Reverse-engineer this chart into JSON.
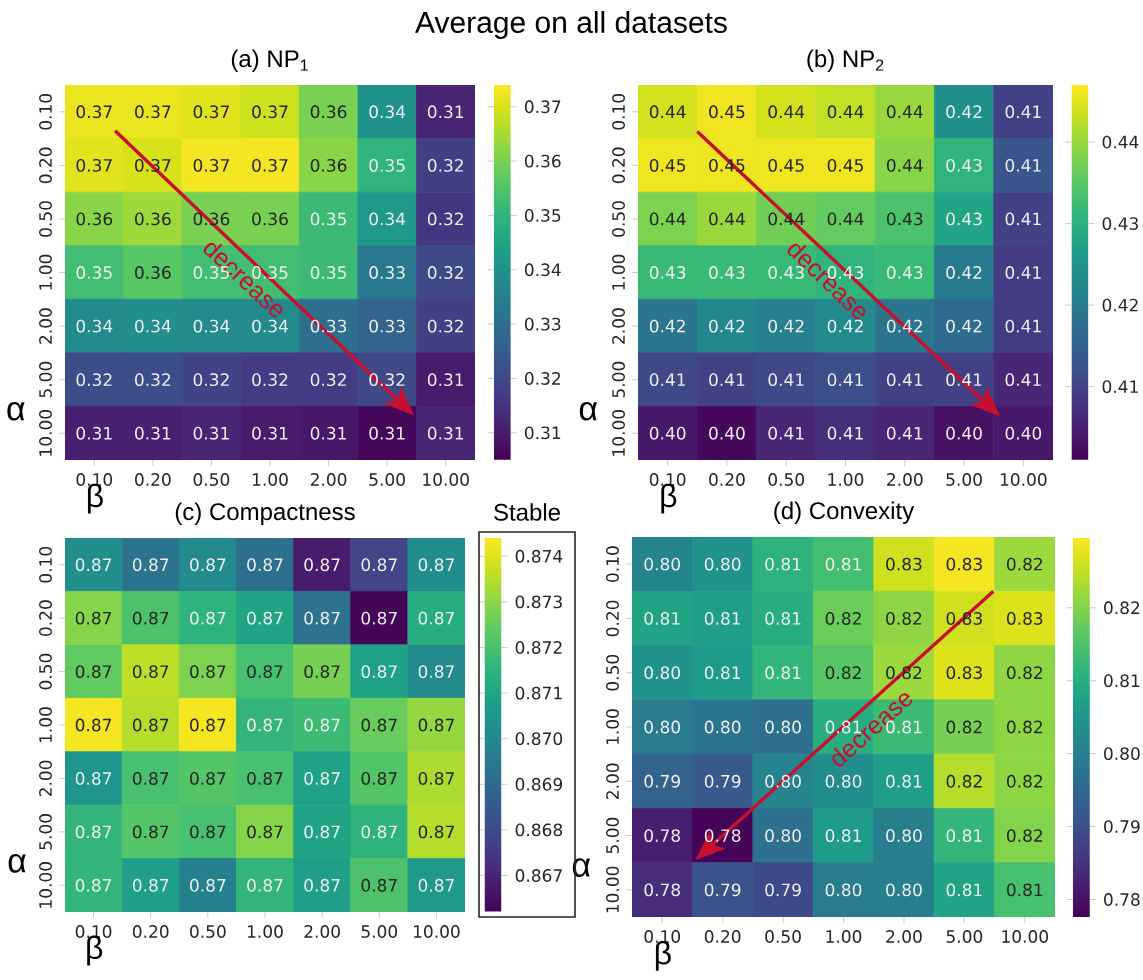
{
  "chart_data": [
    {
      "type": "heatmap",
      "title": "(a) NP$_{1}$",
      "xlabel": "β",
      "ylabel": "α",
      "categories": [
        "0.10",
        "0.20",
        "0.50",
        "1.00",
        "2.00",
        "5.00",
        "10.00"
      ],
      "y_categories": [
        "0.10",
        "0.20",
        "0.50",
        "1.00",
        "2.00",
        "5.00",
        "10.00"
      ],
      "cells": [
        [
          0.372,
          0.372,
          0.371,
          0.369,
          0.36,
          0.34,
          0.312
        ],
        [
          0.371,
          0.37,
          0.373,
          0.373,
          0.362,
          0.35,
          0.318
        ],
        [
          0.362,
          0.364,
          0.36,
          0.36,
          0.352,
          0.342,
          0.316
        ],
        [
          0.353,
          0.356,
          0.353,
          0.353,
          0.352,
          0.333,
          0.32
        ],
        [
          0.338,
          0.339,
          0.338,
          0.338,
          0.33,
          0.327,
          0.318
        ],
        [
          0.321,
          0.321,
          0.319,
          0.317,
          0.317,
          0.32,
          0.31
        ],
        [
          0.311,
          0.311,
          0.312,
          0.31,
          0.309,
          0.306,
          0.312
        ]
      ],
      "cell_labels": [
        [
          "0.37",
          "0.37",
          "0.37",
          "0.37",
          "0.36",
          "0.34",
          "0.31"
        ],
        [
          "0.37",
          "0.37",
          "0.37",
          "0.37",
          "0.36",
          "0.35",
          "0.32"
        ],
        [
          "0.36",
          "0.36",
          "0.36",
          "0.36",
          "0.35",
          "0.34",
          "0.32"
        ],
        [
          "0.35",
          "0.36",
          "0.35",
          "0.35",
          "0.35",
          "0.33",
          "0.32"
        ],
        [
          "0.34",
          "0.34",
          "0.34",
          "0.34",
          "0.33",
          "0.33",
          "0.32"
        ],
        [
          "0.32",
          "0.32",
          "0.32",
          "0.32",
          "0.32",
          "0.32",
          "0.31"
        ],
        [
          "0.31",
          "0.31",
          "0.31",
          "0.31",
          "0.31",
          "0.31",
          "0.31"
        ]
      ],
      "clim": [
        0.305,
        0.374
      ],
      "cticks": [
        0.31,
        0.32,
        0.33,
        0.34,
        0.35,
        0.36,
        0.37
      ],
      "annotations": [
        "Average on all datasets",
        "decrease"
      ]
    },
    {
      "type": "heatmap",
      "title": "(b) NP$_{2}$",
      "xlabel": "β",
      "ylabel": "α",
      "categories": [
        "0.10",
        "0.20",
        "0.50",
        "1.00",
        "2.00",
        "5.00",
        "10.00"
      ],
      "y_categories": [
        "0.10",
        "0.20",
        "0.50",
        "1.00",
        "2.00",
        "5.00",
        "10.00"
      ],
      "cells": [
        [
          0.444,
          0.446,
          0.444,
          0.443,
          0.44,
          0.424,
          0.41
        ],
        [
          0.446,
          0.446,
          0.446,
          0.446,
          0.439,
          0.431,
          0.413
        ],
        [
          0.438,
          0.44,
          0.437,
          0.436,
          0.434,
          0.428,
          0.41
        ],
        [
          0.432,
          0.432,
          0.432,
          0.431,
          0.432,
          0.42,
          0.409
        ],
        [
          0.419,
          0.422,
          0.421,
          0.423,
          0.419,
          0.417,
          0.409
        ],
        [
          0.411,
          0.41,
          0.411,
          0.412,
          0.41,
          0.41,
          0.406
        ],
        [
          0.404,
          0.402,
          0.406,
          0.407,
          0.406,
          0.403,
          0.404
        ]
      ],
      "cell_labels": [
        [
          "0.44",
          "0.45",
          "0.44",
          "0.44",
          "0.44",
          "0.42",
          "0.41"
        ],
        [
          "0.45",
          "0.45",
          "0.45",
          "0.45",
          "0.44",
          "0.43",
          "0.41"
        ],
        [
          "0.44",
          "0.44",
          "0.44",
          "0.44",
          "0.43",
          "0.43",
          "0.41"
        ],
        [
          "0.43",
          "0.43",
          "0.43",
          "0.43",
          "0.43",
          "0.42",
          "0.41"
        ],
        [
          "0.42",
          "0.42",
          "0.42",
          "0.42",
          "0.42",
          "0.42",
          "0.41"
        ],
        [
          "0.41",
          "0.41",
          "0.41",
          "0.41",
          "0.41",
          "0.41",
          "0.41"
        ],
        [
          "0.40",
          "0.40",
          "0.41",
          "0.41",
          "0.41",
          "0.40",
          "0.40"
        ]
      ],
      "clim": [
        0.401,
        0.447
      ],
      "cticks": [
        0.41,
        0.42,
        0.43,
        0.44
      ],
      "annotations": [
        "decrease"
      ]
    },
    {
      "type": "heatmap",
      "title": "(c) Compactness",
      "xlabel": "β",
      "ylabel": "α",
      "clabel": "Stable",
      "categories": [
        "0.10",
        "0.20",
        "0.50",
        "1.00",
        "2.00",
        "5.00",
        "10.00"
      ],
      "y_categories": [
        "0.10",
        "0.20",
        "0.50",
        "1.00",
        "2.00",
        "5.00",
        "10.00"
      ],
      "cells": [
        [
          0.8703,
          0.8693,
          0.8701,
          0.8692,
          0.8668,
          0.8679,
          0.8702
        ],
        [
          0.8729,
          0.8721,
          0.8715,
          0.871,
          0.8693,
          0.8663,
          0.8713
        ],
        [
          0.8724,
          0.8736,
          0.8728,
          0.872,
          0.8727,
          0.8709,
          0.8701
        ],
        [
          0.8743,
          0.8735,
          0.8743,
          0.8716,
          0.8718,
          0.8725,
          0.8731
        ],
        [
          0.8705,
          0.872,
          0.8722,
          0.872,
          0.8709,
          0.8722,
          0.8734
        ],
        [
          0.8716,
          0.8722,
          0.872,
          0.8729,
          0.871,
          0.8715,
          0.8735
        ],
        [
          0.8716,
          0.8708,
          0.8698,
          0.8716,
          0.8708,
          0.8721,
          0.8706
        ]
      ],
      "cell_labels": [
        [
          "0.87",
          "0.87",
          "0.87",
          "0.87",
          "0.87",
          "0.87",
          "0.87"
        ],
        [
          "0.87",
          "0.87",
          "0.87",
          "0.87",
          "0.87",
          "0.87",
          "0.87"
        ],
        [
          "0.87",
          "0.87",
          "0.87",
          "0.87",
          "0.87",
          "0.87",
          "0.87"
        ],
        [
          "0.87",
          "0.87",
          "0.87",
          "0.87",
          "0.87",
          "0.87",
          "0.87"
        ],
        [
          "0.87",
          "0.87",
          "0.87",
          "0.87",
          "0.87",
          "0.87",
          "0.87"
        ],
        [
          "0.87",
          "0.87",
          "0.87",
          "0.87",
          "0.87",
          "0.87",
          "0.87"
        ],
        [
          "0.87",
          "0.87",
          "0.87",
          "0.87",
          "0.87",
          "0.87",
          "0.87"
        ]
      ],
      "clim": [
        0.8662,
        0.8744
      ],
      "cticks": [
        0.867,
        0.868,
        0.869,
        {
          "value": 0.87,
          "label": "0.870"
        },
        0.871,
        0.872,
        0.873,
        0.874
      ]
    },
    {
      "type": "heatmap",
      "title": "(d) Convexity",
      "xlabel": "β",
      "ylabel": "α",
      "categories": [
        "0.10",
        "0.20",
        "0.50",
        "1.00",
        "2.00",
        "5.00",
        "10.00"
      ],
      "y_categories": [
        "0.10",
        "0.20",
        "0.50",
        "1.00",
        "2.00",
        "5.00",
        "10.00"
      ],
      "cells": [
        [
          0.801,
          0.804,
          0.811,
          0.814,
          0.826,
          0.829,
          0.822
        ],
        [
          0.808,
          0.807,
          0.81,
          0.818,
          0.821,
          0.826,
          0.827
        ],
        [
          0.804,
          0.806,
          0.812,
          0.816,
          0.822,
          0.827,
          0.821
        ],
        [
          0.799,
          0.798,
          0.797,
          0.81,
          0.813,
          0.819,
          0.821
        ],
        [
          0.794,
          0.792,
          0.801,
          0.803,
          0.807,
          0.824,
          0.821
        ],
        [
          0.782,
          0.778,
          0.797,
          0.806,
          0.8,
          0.812,
          0.82
        ],
        [
          0.784,
          0.791,
          0.789,
          0.799,
          0.8,
          0.808,
          0.8145
        ]
      ],
      "cell_labels": [
        [
          "0.80",
          "0.80",
          "0.81",
          "0.81",
          "0.83",
          "0.83",
          "0.82"
        ],
        [
          "0.81",
          "0.81",
          "0.81",
          "0.82",
          "0.82",
          "0.83",
          "0.83"
        ],
        [
          "0.80",
          "0.81",
          "0.81",
          "0.82",
          "0.82",
          "0.83",
          "0.82"
        ],
        [
          "0.80",
          "0.80",
          "0.80",
          "0.81",
          "0.81",
          "0.82",
          "0.82"
        ],
        [
          "0.79",
          "0.79",
          "0.80",
          "0.80",
          "0.81",
          "0.82",
          "0.82"
        ],
        [
          "0.78",
          "0.78",
          "0.80",
          "0.81",
          "0.80",
          "0.81",
          "0.82"
        ],
        [
          "0.78",
          "0.79",
          "0.79",
          "0.80",
          "0.80",
          "0.81",
          "0.81"
        ]
      ],
      "clim": [
        0.7776,
        0.8297
      ],
      "cticks": [
        0.78,
        0.79,
        {
          "value": 0.8,
          "label": "0.80"
        },
        0.81,
        0.82
      ],
      "annotations": [
        "decrease"
      ]
    }
  ]
}
